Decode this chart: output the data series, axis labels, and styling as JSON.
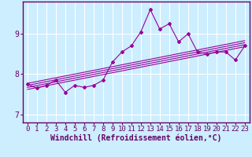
{
  "xlabel": "Windchill (Refroidissement éolien,°C)",
  "ylabel": "",
  "background_color": "#cceeff",
  "grid_color": "#ffffff",
  "line_color": "#990099",
  "x_values": [
    0,
    1,
    2,
    3,
    4,
    5,
    6,
    7,
    8,
    9,
    10,
    11,
    12,
    13,
    14,
    15,
    16,
    17,
    18,
    19,
    20,
    21,
    22,
    23
  ],
  "y_main": [
    7.75,
    7.65,
    7.72,
    7.85,
    7.55,
    7.72,
    7.67,
    7.72,
    7.85,
    8.3,
    8.55,
    8.7,
    9.05,
    9.6,
    9.12,
    9.25,
    8.8,
    9.0,
    8.55,
    8.5,
    8.55,
    8.55,
    8.35,
    8.7
  ],
  "reg_lines": [
    {
      "x0": 0,
      "y0": 7.62,
      "x1": 23,
      "y1": 8.68
    },
    {
      "x0": 0,
      "y0": 7.67,
      "x1": 23,
      "y1": 8.73
    },
    {
      "x0": 0,
      "y0": 7.72,
      "x1": 23,
      "y1": 8.78
    },
    {
      "x0": 0,
      "y0": 7.77,
      "x1": 23,
      "y1": 8.83
    }
  ],
  "xlim": [
    -0.5,
    23.5
  ],
  "ylim": [
    6.8,
    9.8
  ],
  "xticks": [
    0,
    1,
    2,
    3,
    4,
    5,
    6,
    7,
    8,
    9,
    10,
    11,
    12,
    13,
    14,
    15,
    16,
    17,
    18,
    19,
    20,
    21,
    22,
    23
  ],
  "yticks": [
    7,
    8,
    9
  ],
  "xlabel_fontsize": 7,
  "tick_fontsize": 6.5
}
